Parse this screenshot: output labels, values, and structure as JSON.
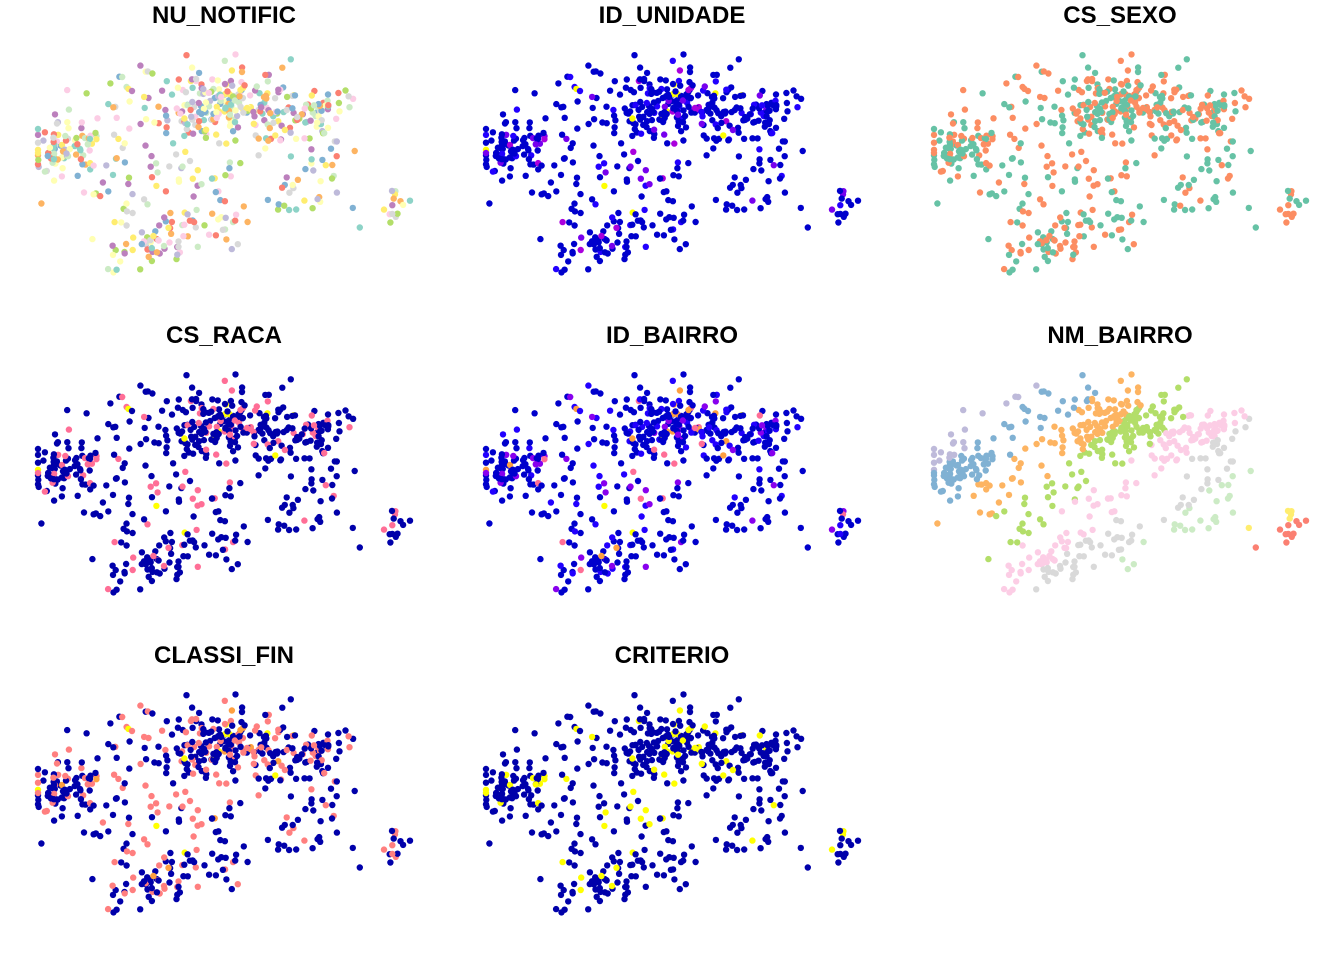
{
  "chart_data": [
    {
      "type": "scatter",
      "title": "NU_NOTIFIC",
      "point_colors": [
        "#8DD3C7",
        "#FFFFB3",
        "#BEBADA",
        "#FB8072",
        "#80B1D3",
        "#FDB462",
        "#B3DE69",
        "#FCCDE5",
        "#D9D9D9",
        "#BC80BD",
        "#CCEBC5",
        "#FFED6F"
      ]
    },
    {
      "type": "scatter",
      "title": "ID_UNIDADE",
      "point_colors": [
        "#0000CC",
        "#2200FF",
        "#7700EE",
        "#AA00DD",
        "#FFFF00"
      ]
    },
    {
      "type": "scatter",
      "title": "CS_SEXO",
      "point_colors": [
        "#66C2A5",
        "#FC8D62"
      ]
    },
    {
      "type": "scatter",
      "title": "CS_RACA",
      "point_colors": [
        "#0000AA",
        "#FF6E96",
        "#FFFF00"
      ]
    },
    {
      "type": "scatter",
      "title": "ID_BAIRRO",
      "point_colors": [
        "#0000CC",
        "#2200FF",
        "#8800EE",
        "#FF6E96",
        "#FFA040",
        "#FFFF00"
      ]
    },
    {
      "type": "scatter",
      "title": "NM_BAIRRO",
      "point_colors": [
        "#FB8072",
        "#8DD3C7",
        "#FFFFB3",
        "#BEBADA",
        "#80B1D3",
        "#FDB462",
        "#B3DE69",
        "#FCCDE5",
        "#D9D9D9",
        "#CCEBC5",
        "#FFED6F"
      ]
    },
    {
      "type": "scatter",
      "title": "CLASSI_FIN",
      "point_colors": [
        "#0000AA",
        "#FF7F7F",
        "#FFA040",
        "#FFFF00"
      ]
    },
    {
      "type": "scatter",
      "title": "CRITERIO",
      "point_colors": [
        "#0000AA",
        "#FFFF00"
      ]
    }
  ]
}
